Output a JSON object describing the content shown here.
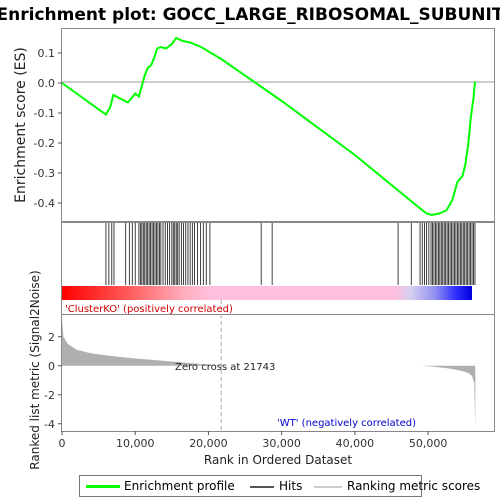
{
  "chart_data": {
    "type": "line",
    "title": "Enrichment plot: GOCC_LARGE_RIBOSOMAL_SUBUNIT",
    "top_panel": {
      "ylabel": "Enrichment score (ES)",
      "yticks": [
        "0.1",
        "0.0",
        "-0.1",
        "-0.2",
        "-0.3",
        "-0.4"
      ],
      "ylim": [
        -0.46,
        0.18
      ],
      "series_color": "#00ff00",
      "points": [
        [
          0,
          0.0
        ],
        [
          6000,
          -0.105
        ],
        [
          6600,
          -0.08
        ],
        [
          7000,
          -0.04
        ],
        [
          9000,
          -0.065
        ],
        [
          9500,
          -0.05
        ],
        [
          10000,
          -0.035
        ],
        [
          10500,
          -0.045
        ],
        [
          10900,
          -0.01
        ],
        [
          11300,
          0.025
        ],
        [
          11700,
          0.05
        ],
        [
          12200,
          0.06
        ],
        [
          12600,
          0.085
        ],
        [
          13000,
          0.115
        ],
        [
          13500,
          0.12
        ],
        [
          14200,
          0.115
        ],
        [
          15000,
          0.13
        ],
        [
          15600,
          0.15
        ],
        [
          16500,
          0.14
        ],
        [
          17500,
          0.135
        ],
        [
          19000,
          0.12
        ],
        [
          21743,
          0.08
        ],
        [
          30000,
          -0.06
        ],
        [
          40000,
          -0.24
        ],
        [
          46000,
          -0.36
        ],
        [
          48500,
          -0.41
        ],
        [
          49800,
          -0.435
        ],
        [
          50500,
          -0.44
        ],
        [
          51500,
          -0.435
        ],
        [
          52500,
          -0.425
        ],
        [
          53300,
          -0.39
        ],
        [
          54000,
          -0.33
        ],
        [
          54700,
          -0.31
        ],
        [
          55100,
          -0.27
        ],
        [
          55500,
          -0.2
        ],
        [
          55800,
          -0.12
        ],
        [
          56200,
          -0.05
        ],
        [
          56400,
          0.005
        ]
      ]
    },
    "hits_panel": {
      "hit_positions": [
        6000,
        6400,
        6800,
        7100,
        8700,
        9200,
        9600,
        10000,
        10500,
        10700,
        10900,
        11100,
        11300,
        11500,
        11700,
        11900,
        12100,
        12300,
        12500,
        12700,
        12900,
        13100,
        13300,
        13500,
        13800,
        14100,
        14400,
        14700,
        15000,
        15200,
        15400,
        15600,
        15800,
        16000,
        16300,
        16600,
        16900,
        17200,
        17500,
        17800,
        18100,
        18500,
        18900,
        19300,
        19700,
        20200,
        27200,
        28700,
        45900,
        47700,
        48900,
        49200,
        49500,
        49800,
        50100,
        50400,
        50600,
        50800,
        51000,
        51200,
        51400,
        51600,
        51800,
        52000,
        52200,
        52400,
        52600,
        52800,
        53000,
        53200,
        53400,
        53600,
        53800,
        54000,
        54200,
        54400,
        54600,
        54800,
        55000,
        55200,
        55400,
        55600,
        55800,
        56000,
        56200,
        56400
      ]
    },
    "lower_panel": {
      "ylabel": "Ranked list metric (Signal2Noise)",
      "xlabel": "Rank in Ordered Dataset",
      "yticks": [
        "2",
        "0",
        "-2",
        "-4"
      ],
      "ylim": [
        -4.5,
        3.5
      ],
      "xticks": [
        "0",
        "10,000",
        "20,000",
        "30,000",
        "40,000",
        "50,000"
      ],
      "xlim": [
        0,
        59000
      ],
      "zero_cross": 21743,
      "metric_points": [
        [
          0,
          3.2
        ],
        [
          200,
          2.0
        ],
        [
          800,
          1.5
        ],
        [
          2000,
          1.1
        ],
        [
          4000,
          0.85
        ],
        [
          7000,
          0.65
        ],
        [
          10000,
          0.5
        ],
        [
          13000,
          0.38
        ],
        [
          16000,
          0.25
        ],
        [
          19000,
          0.12
        ],
        [
          21743,
          0.0
        ],
        [
          49000,
          0.0
        ],
        [
          51000,
          -0.08
        ],
        [
          53000,
          -0.2
        ],
        [
          54500,
          -0.35
        ],
        [
          55500,
          -0.5
        ],
        [
          56000,
          -0.7
        ],
        [
          56300,
          -1.2
        ],
        [
          56450,
          -4.2
        ]
      ]
    },
    "annotations": {
      "positive": "'ClusterKO' (positively correlated)",
      "zero_cross": "Zero cross at 21743",
      "negative": "'WT' (negatively correlated)"
    },
    "legend": {
      "enrichment": "Enrichment profile",
      "hits": "Hits",
      "ranking": "Ranking metric scores"
    },
    "colors": {
      "es_line": "#00ff00",
      "positive_text": "#cc0000",
      "negative_text": "#0000cc",
      "metric_fill": "#b0b0b0",
      "band_red": "#ff0000",
      "band_pink": "#ffc0e0",
      "band_blue": "#0000ff"
    }
  }
}
